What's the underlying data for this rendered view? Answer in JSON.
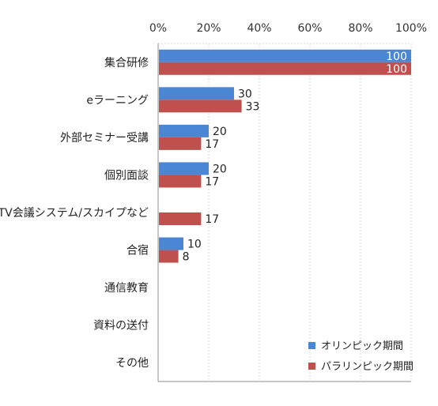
{
  "chart_data": {
    "type": "bar",
    "orientation": "horizontal",
    "categories": [
      "集合研修",
      "eラーニング",
      "外部セミナー受講",
      "個別面談",
      "TV会議システム/スカイプなど",
      "合宿",
      "通信教育",
      "資料の送付",
      "その他"
    ],
    "series": [
      {
        "name": "オリンピック期間",
        "values": [
          100,
          30,
          20,
          20,
          0,
          10,
          0,
          0,
          0
        ],
        "labels": [
          "100",
          "30",
          "20",
          "20",
          "",
          "10",
          "",
          "",
          ""
        ]
      },
      {
        "name": "パラリンピック期間",
        "values": [
          100,
          33,
          17,
          17,
          17,
          8,
          0,
          0,
          0
        ],
        "labels": [
          "100",
          "33",
          "17",
          "17",
          "17",
          "8",
          "",
          "",
          ""
        ]
      }
    ],
    "colors": [
      "#4a86d4",
      "#c0504d"
    ],
    "xlim": [
      0,
      100
    ],
    "x_ticks": [
      "0%",
      "20%",
      "40%",
      "60%",
      "80%",
      "100%"
    ],
    "x_tick_values": [
      0,
      20,
      40,
      60,
      80,
      100
    ],
    "x_axis_position": "top",
    "grid": true,
    "legend_position": "bottom-right",
    "title": "",
    "xlabel": "",
    "ylabel": ""
  }
}
